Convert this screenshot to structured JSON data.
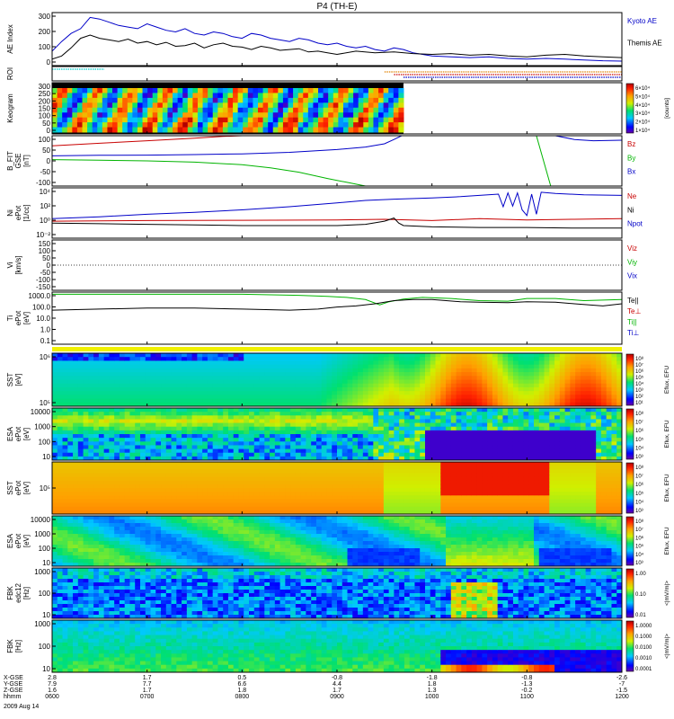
{
  "title": "P4 (TH-E)",
  "colors": {
    "blue": "#0000c8",
    "red": "#c80000",
    "green": "#00b400",
    "black": "#000000",
    "cyan": "#00c8c8",
    "orange": "#e08000",
    "yellow": "#f0f000"
  },
  "chart_data": {
    "type": "line",
    "x_ticks": [
      "0600",
      "0700",
      "0800",
      "0900",
      "1000",
      "1100",
      "1200"
    ],
    "x_range_hours": [
      6,
      12
    ],
    "time_label": "hhmm",
    "date_label": "2009 Aug 14",
    "ephemeris": [
      {
        "name": "X-GSE",
        "values": [
          "2.8",
          "1.7",
          "0.5",
          "-0.8",
          "-1.8",
          "-0.8",
          "-2.6"
        ]
      },
      {
        "name": "Y-GSE",
        "values": [
          "7.9",
          "7.7",
          "6.6",
          "4.4",
          "1.8",
          "-1.3",
          "-7"
        ]
      },
      {
        "name": "Z-GSE",
        "values": [
          "1.6",
          "1.7",
          "1.8",
          "1.7",
          "1.3",
          "-0.2",
          "-1.5"
        ]
      }
    ],
    "panels": [
      {
        "id": "ae",
        "ylabel": [
          "AE Index"
        ],
        "yticks": [
          "0",
          "100",
          "200",
          "300"
        ],
        "ylim": [
          0,
          330
        ],
        "legend": [
          {
            "text": "Kyoto AE",
            "color": "#0000c8"
          },
          {
            "text": "Themis AE",
            "color": "#000000"
          }
        ],
        "series": [
          {
            "name": "Kyoto AE",
            "color": "#0000c8",
            "x": [
              6.0,
              6.1,
              6.2,
              6.3,
              6.4,
              6.5,
              6.6,
              6.7,
              6.8,
              6.9,
              7.0,
              7.1,
              7.2,
              7.3,
              7.4,
              7.5,
              7.6,
              7.7,
              7.8,
              7.9,
              8.0,
              8.1,
              8.2,
              8.3,
              8.4,
              8.5,
              8.6,
              8.7,
              8.8,
              8.9,
              9.0,
              9.1,
              9.2,
              9.3,
              9.4,
              9.5,
              9.6,
              9.7,
              9.8,
              9.9,
              10.0,
              10.2,
              10.4,
              10.6,
              10.8,
              11.0,
              11.2,
              11.4,
              11.6,
              11.8,
              12.0
            ],
            "y": [
              90,
              150,
              200,
              230,
              300,
              290,
              270,
              250,
              240,
              230,
              260,
              240,
              220,
              210,
              230,
              200,
              190,
              210,
              200,
              180,
              170,
              200,
              190,
              170,
              160,
              150,
              170,
              160,
              140,
              130,
              140,
              120,
              110,
              120,
              100,
              90,
              110,
              100,
              80,
              70,
              60,
              55,
              50,
              55,
              45,
              40,
              45,
              40,
              35,
              30,
              28
            ]
          },
          {
            "name": "Themis AE",
            "color": "#000000",
            "x": [
              6.0,
              6.1,
              6.2,
              6.3,
              6.4,
              6.5,
              6.6,
              6.7,
              6.8,
              6.9,
              7.0,
              7.1,
              7.2,
              7.3,
              7.4,
              7.5,
              7.6,
              7.7,
              7.8,
              7.9,
              8.0,
              8.1,
              8.2,
              8.3,
              8.4,
              8.5,
              8.6,
              8.7,
              8.8,
              8.9,
              9.0,
              9.2,
              9.4,
              9.6,
              9.8,
              10.0,
              10.2,
              10.4,
              10.6,
              10.8,
              11.0,
              11.2,
              11.4,
              11.6,
              11.8,
              12.0
            ],
            "y": [
              40,
              60,
              110,
              170,
              190,
              170,
              160,
              150,
              165,
              140,
              150,
              130,
              145,
              120,
              125,
              140,
              110,
              130,
              140,
              120,
              115,
              100,
              120,
              110,
              95,
              100,
              105,
              85,
              90,
              80,
              70,
              90,
              80,
              85,
              75,
              70,
              75,
              65,
              70,
              60,
              55,
              65,
              70,
              60,
              55,
              50
            ]
          }
        ]
      },
      {
        "id": "roi",
        "ylabel": [
          "ROI"
        ],
        "yticks": [],
        "kind": "roi",
        "segments": [
          {
            "x0": 6.0,
            "x1": 6.55,
            "color": "#00c8c8",
            "row": 0
          },
          {
            "x0": 9.5,
            "x1": 12.0,
            "color": "#e08000",
            "row": 1
          },
          {
            "x0": 9.6,
            "x1": 12.0,
            "color": "#c80000",
            "row": 2
          },
          {
            "x0": 9.7,
            "x1": 12.0,
            "color": "#0000c8",
            "row": 3
          }
        ]
      },
      {
        "id": "keogram",
        "ylabel": [
          "Keogram"
        ],
        "yticks": [
          "0",
          "50",
          "100",
          "150",
          "200",
          "250",
          "300"
        ],
        "kind": "keogram",
        "x_end": 9.7,
        "colorbar": {
          "ticks": [
            "6×10⁴",
            "5×10⁴",
            "4×10⁴",
            "3×10⁴",
            "2×10⁴",
            "1×10⁴"
          ],
          "label": "[counts]"
        }
      },
      {
        "id": "bfield",
        "ylabel": [
          "B_FIT",
          "GSE",
          "[nT]"
        ],
        "yticks": [
          "-100",
          "-50",
          "0",
          "50",
          "100"
        ],
        "ylim": [
          -100,
          100
        ],
        "legend": [
          {
            "text": "Bz",
            "color": "#c80000"
          },
          {
            "text": "By",
            "color": "#00b400"
          },
          {
            "text": "Bx",
            "color": "#0000c8"
          }
        ],
        "series": [
          {
            "name": "Bz",
            "color": "#c80000",
            "x": [
              6.0,
              6.5,
              7.0,
              7.5,
              7.8,
              8.0
            ],
            "y": [
              60,
              70,
              80,
              90,
              97,
              100
            ]
          },
          {
            "name": "By",
            "color": "#00b400",
            "x": [
              6.0,
              6.5,
              7.0,
              7.5,
              8.0,
              8.3,
              8.6,
              8.9,
              9.1,
              9.3
            ],
            "y": [
              5,
              3,
              0,
              -5,
              -15,
              -28,
              -45,
              -70,
              -85,
              -100
            ]
          },
          {
            "name": "Bx",
            "color": "#0000c8",
            "x": [
              6.0,
              6.5,
              7.0,
              7.5,
              8.0,
              8.5,
              9.0,
              9.3,
              9.5,
              9.6,
              9.68
            ],
            "y": [
              20,
              22,
              23,
              25,
              28,
              34,
              45,
              55,
              68,
              85,
              100
            ]
          },
          {
            "name": "Bx-late",
            "color": "#0000c8",
            "x": [
              11.3,
              11.5,
              11.7,
              12.0
            ],
            "y": [
              100,
              85,
              80,
              82
            ]
          },
          {
            "name": "By-late",
            "color": "#00b400",
            "x": [
              11.1,
              11.25
            ],
            "y": [
              100,
              -100
            ]
          }
        ]
      },
      {
        "id": "density",
        "ylabel": [
          "Ni",
          "ePot",
          "[1/cc]"
        ],
        "yticks": [
          "10⁻²",
          "10⁰",
          "10²",
          "10⁴"
        ],
        "ylim": [
          -3,
          5
        ],
        "log": true,
        "legend": [
          {
            "text": "Ne",
            "color": "#c80000"
          },
          {
            "text": "Ni",
            "color": "#000000"
          },
          {
            "text": "Npot",
            "color": "#0000c8"
          }
        ],
        "series": [
          {
            "name": "Npot",
            "color": "#0000c8",
            "x": [
              6.0,
              6.5,
              7.0,
              7.5,
              8.0,
              8.5,
              9.0,
              9.3,
              9.6,
              10.0,
              10.3,
              10.5,
              10.7,
              10.75,
              10.8,
              10.85,
              10.9,
              10.95,
              11.0,
              11.05,
              11.1,
              11.15,
              11.3,
              11.6,
              12.0
            ],
            "y": [
              0.1,
              0.4,
              0.8,
              1.1,
              1.5,
              2.0,
              2.6,
              3.0,
              3.2,
              3.4,
              3.6,
              3.8,
              4.0,
              2.0,
              4.2,
              2.1,
              4.2,
              1.5,
              0.6,
              4.0,
              0.8,
              4.3,
              4.1,
              3.9,
              3.8
            ]
          },
          {
            "name": "Ne",
            "color": "#c80000",
            "x": [
              6.0,
              7.0,
              8.0,
              9.0,
              9.5,
              10.0,
              10.5,
              11.0,
              11.5,
              12.0
            ],
            "y": [
              -0.3,
              -0.2,
              -0.15,
              -0.1,
              0.0,
              -0.2,
              0.1,
              -0.1,
              0.0,
              0.1
            ]
          },
          {
            "name": "Ni",
            "color": "#000000",
            "x": [
              6.0,
              6.5,
              7.0,
              7.5,
              8.0,
              8.5,
              9.0,
              9.3,
              9.5,
              9.6,
              9.65,
              9.7,
              10.0,
              10.5,
              11.0,
              11.5,
              12.0
            ],
            "y": [
              -0.6,
              -0.7,
              -0.8,
              -0.9,
              -1.0,
              -1.0,
              -1.0,
              -0.8,
              -0.3,
              0.2,
              -0.6,
              -1.0,
              -1.2,
              -1.3,
              -1.3,
              -1.4,
              -1.4
            ]
          }
        ]
      },
      {
        "id": "velocity",
        "ylabel": [
          "Vi",
          "[km/s]"
        ],
        "yticks": [
          "-150",
          "-100",
          "-50",
          "0",
          "50",
          "100",
          "150"
        ],
        "ylim": [
          -180,
          180
        ],
        "legend": [
          {
            "text": "Viz",
            "color": "#c80000"
          },
          {
            "text": "Viy",
            "color": "#00b400"
          },
          {
            "text": "Vix",
            "color": "#0000c8"
          }
        ],
        "series": []
      },
      {
        "id": "temperature",
        "ylabel": [
          "Ti",
          "ePot",
          "[eV]"
        ],
        "yticks": [
          "0.1",
          "1.0",
          "10.0",
          "100.0",
          "1000.0"
        ],
        "ylim": [
          -1.3,
          3.6
        ],
        "log": true,
        "legend": [
          {
            "text": "Te||",
            "color": "#000000"
          },
          {
            "text": "Te⊥",
            "color": "#c80000"
          },
          {
            "text": "Ti||",
            "color": "#00b400"
          },
          {
            "text": "Ti⊥",
            "color": "#0000c8"
          }
        ],
        "series": [
          {
            "name": "Ti",
            "color": "#00b400",
            "x": [
              6.0,
              6.5,
              7.0,
              7.5,
              8.0,
              8.3,
              8.6,
              8.9,
              9.1,
              9.3,
              9.45,
              9.55,
              9.7,
              9.9,
              10.2,
              10.5,
              10.8,
              11.0,
              11.3,
              11.6,
              12.0
            ],
            "y": [
              3.4,
              3.4,
              3.4,
              3.4,
              3.4,
              3.35,
              3.3,
              3.2,
              3.1,
              2.9,
              2.4,
              2.7,
              2.95,
              3.1,
              3.0,
              2.8,
              2.75,
              3.0,
              3.0,
              2.8,
              2.9
            ]
          },
          {
            "name": "Te",
            "color": "#000000",
            "x": [
              6.0,
              6.5,
              7.0,
              7.5,
              8.0,
              8.5,
              8.8,
              9.0,
              9.2,
              9.4,
              9.6,
              9.8,
              10.0,
              10.3,
              10.5,
              10.8,
              11.0,
              11.3,
              11.5,
              11.8,
              12.0
            ],
            "y": [
              1.9,
              2.0,
              2.1,
              2.1,
              2.0,
              1.9,
              2.0,
              2.2,
              2.3,
              2.5,
              2.8,
              2.9,
              2.9,
              2.7,
              2.65,
              2.6,
              2.7,
              2.65,
              2.5,
              2.3,
              2.5
            ]
          }
        ]
      },
      {
        "id": "sst_eflux_1",
        "ylabel": [
          "SST",
          "[eV]"
        ],
        "yticks": [
          "10⁵",
          "10⁶"
        ],
        "kind": "spec",
        "variant": "sst1",
        "colorbar": {
          "ticks": [
            "10⁸",
            "10⁷",
            "10⁶",
            "10⁵",
            "10⁴",
            "10³",
            "10²",
            "10¹"
          ],
          "label": "Eflux, EFU"
        }
      },
      {
        "id": "esa_eflux_1",
        "ylabel": [
          "ESA",
          "ePot",
          "[eV]"
        ],
        "yticks": [
          "10",
          "100",
          "1000",
          "10000"
        ],
        "kind": "spec",
        "variant": "esa1",
        "colorbar": {
          "ticks": [
            "10⁸",
            "10⁷",
            "10⁶",
            "10⁵",
            "10⁴",
            "10³"
          ],
          "label": "Eflux, EFU"
        }
      },
      {
        "id": "sst_eflux_2",
        "ylabel": [
          "SST",
          "ePot",
          "[eV]"
        ],
        "yticks": [
          "10⁵"
        ],
        "kind": "spec",
        "variant": "sst2",
        "colorbar": {
          "ticks": [
            "10⁸",
            "10⁷",
            "10⁶",
            "10⁵",
            "10⁴",
            "10³"
          ],
          "label": "Eflux, EFU"
        }
      },
      {
        "id": "esa_eflux_2",
        "ylabel": [
          "ESA",
          "ePot",
          "[eV]"
        ],
        "yticks": [
          "10",
          "100",
          "1000",
          "10000"
        ],
        "kind": "spec",
        "variant": "esa2",
        "colorbar": {
          "ticks": [
            "10⁸",
            "10⁷",
            "10⁶",
            "10⁵",
            "10⁴",
            "10³"
          ],
          "label": "Eflux, EFU"
        }
      },
      {
        "id": "fbk_edc12",
        "ylabel": [
          "FBK",
          "edc12",
          "[Hz]"
        ],
        "yticks": [
          "10",
          "100",
          "1000"
        ],
        "kind": "spec",
        "variant": "fbk1",
        "colorbar": {
          "ticks": [
            "1.00",
            "0.10",
            "0.01"
          ],
          "label": "<|mV/m|>"
        }
      },
      {
        "id": "fbk_2",
        "ylabel": [
          "FBK",
          "[Hz]"
        ],
        "yticks": [
          "10",
          "100",
          "1000"
        ],
        "kind": "spec",
        "variant": "fbk2",
        "colorbar": {
          "ticks": [
            "1.0000",
            "0.1000",
            "0.0100",
            "0.0010",
            "0.0001"
          ],
          "label": "<|mV/m|>"
        }
      }
    ]
  }
}
